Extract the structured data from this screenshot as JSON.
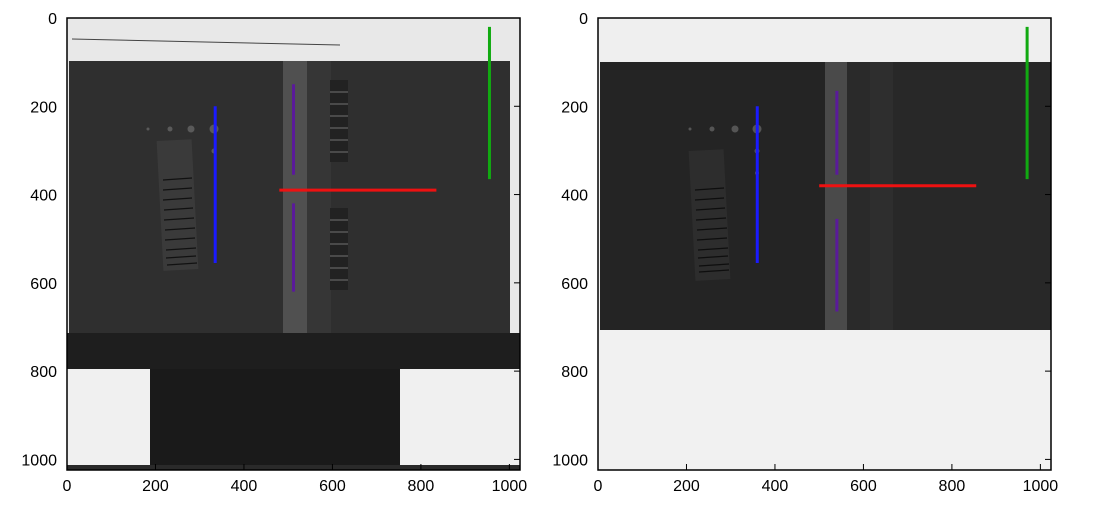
{
  "panels": [
    {
      "id": "left",
      "x_ticks": [
        "0",
        "200",
        "400",
        "600",
        "800",
        "1000"
      ],
      "y_ticks": [
        "0",
        "200",
        "400",
        "600",
        "800",
        "1000"
      ],
      "axis_range": {
        "x": [
          0,
          1024
        ],
        "y": [
          1024,
          0
        ]
      },
      "lines": [
        {
          "name": "blue-vertical",
          "color": "#1a1aff",
          "from": [
            335,
            200
          ],
          "to": [
            335,
            555
          ]
        },
        {
          "name": "purple-vertical-upper",
          "color": "#5a1a9a",
          "from": [
            512,
            150
          ],
          "to": [
            512,
            355
          ]
        },
        {
          "name": "purple-vertical-lower",
          "color": "#5a1a9a",
          "from": [
            512,
            420
          ],
          "to": [
            512,
            620
          ]
        },
        {
          "name": "red-horizontal",
          "color": "#ee1111",
          "from": [
            480,
            390
          ],
          "to": [
            835,
            390
          ]
        },
        {
          "name": "green-vertical",
          "color": "#11aa11",
          "from": [
            955,
            20
          ],
          "to": [
            955,
            365
          ]
        }
      ]
    },
    {
      "id": "right",
      "x_ticks": [
        "0",
        "200",
        "400",
        "600",
        "800",
        "1000"
      ],
      "y_ticks": [
        "0",
        "200",
        "400",
        "600",
        "800",
        "1000"
      ],
      "axis_range": {
        "x": [
          0,
          1024
        ],
        "y": [
          1024,
          0
        ]
      },
      "lines": [
        {
          "name": "blue-vertical",
          "color": "#1a1aff",
          "from": [
            360,
            200
          ],
          "to": [
            360,
            555
          ]
        },
        {
          "name": "purple-vertical-upper",
          "color": "#5a1a9a",
          "from": [
            540,
            165
          ],
          "to": [
            540,
            355
          ]
        },
        {
          "name": "purple-vertical-lower",
          "color": "#5a1a9a",
          "from": [
            540,
            455
          ],
          "to": [
            540,
            665
          ]
        },
        {
          "name": "red-horizontal",
          "color": "#ee1111",
          "from": [
            500,
            380
          ],
          "to": [
            855,
            380
          ]
        },
        {
          "name": "green-vertical",
          "color": "#11aa11",
          "from": [
            970,
            20
          ],
          "to": [
            970,
            365
          ]
        }
      ]
    }
  ]
}
